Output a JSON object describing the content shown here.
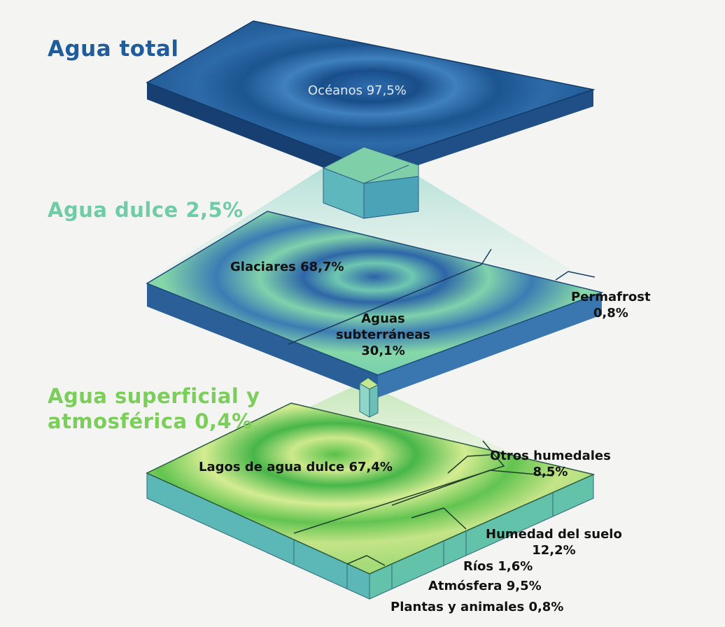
{
  "headings": {
    "total": "Agua total",
    "dulce": "Agua dulce 2,5%",
    "superficial_line1": "Agua superficial y",
    "superficial_line2": "atmosférica 0,4%"
  },
  "labels": {
    "oceanos": "Océanos 97,5%",
    "glaciares": "Glaciares 68,7%",
    "permafrost_name": "Permafrost",
    "permafrost_value": "0,8%",
    "subterraneas_line1": "Aguas",
    "subterraneas_line2": "subterráneas",
    "subterraneas_value": "30,1%",
    "lagos": "Lagos de agua dulce 67,4%",
    "otros_name": "Otros humedales",
    "otros_value": "8,5%",
    "humedad_name": "Humedad del suelo",
    "humedad_value": "12,2%",
    "rios": "Ríos 1,6%",
    "atmosfera": "Atmósfera 9,5%",
    "plantas": "Plantas y animales 0,8%"
  },
  "colors": {
    "ocean_dark": "#1e5a94",
    "ocean_light": "#3f80be",
    "freshwater": "#7fd0a8",
    "ice": "#2f6fae",
    "surface_light": "#cde88a",
    "surface_green": "#49b84a",
    "side_teal": "#5ab8b0"
  }
}
